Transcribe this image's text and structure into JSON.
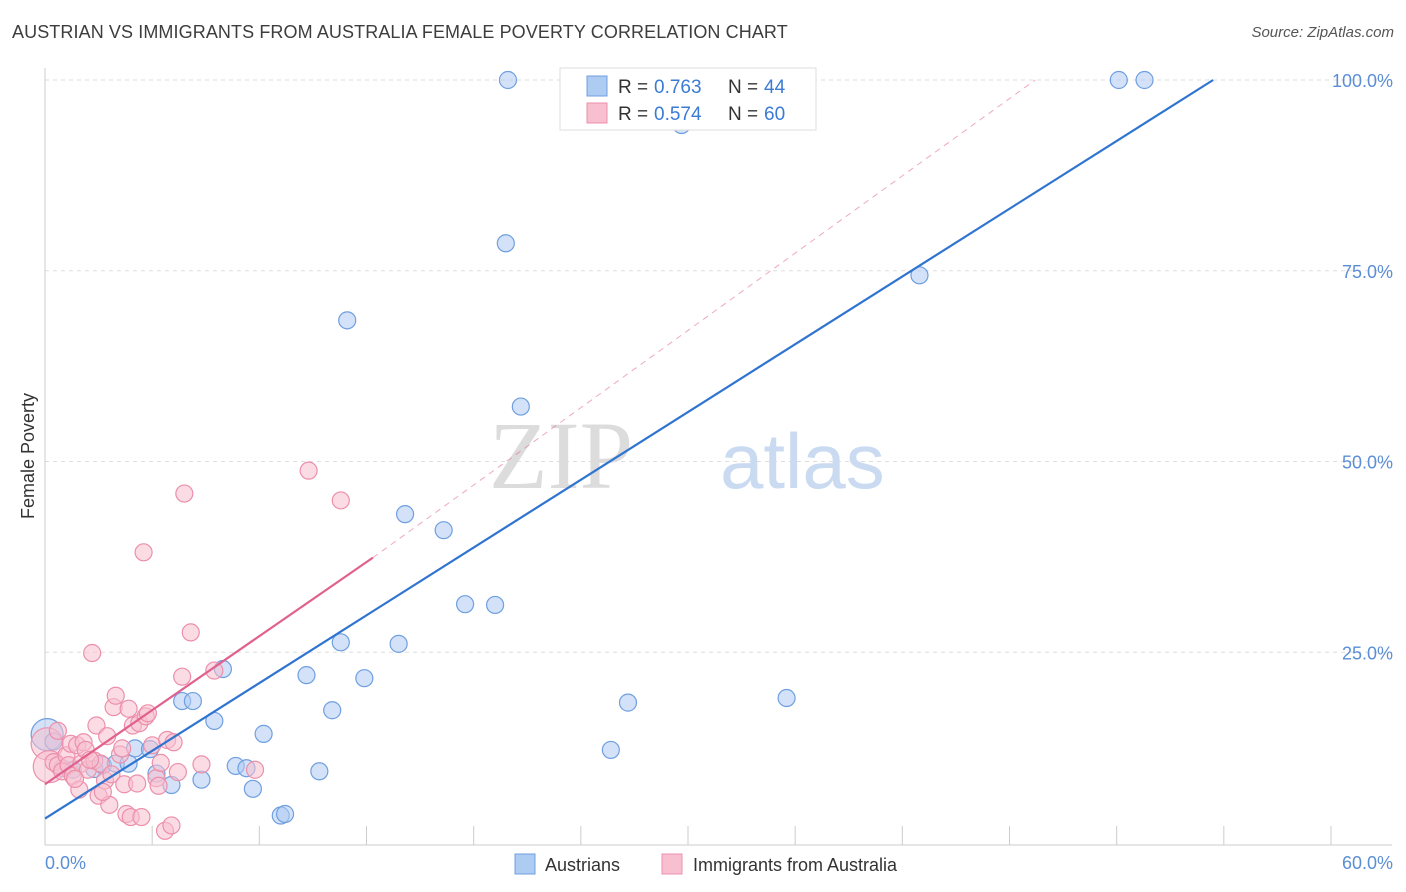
{
  "title": "AUSTRIAN VS IMMIGRANTS FROM AUSTRALIA FEMALE POVERTY CORRELATION CHART",
  "source": "Source: ZipAtlas.com",
  "watermark": {
    "zip": "ZIP",
    "atlas": "atlas"
  },
  "colors": {
    "austrians_fill": "#aecbf2",
    "austrians_stroke": "#6f9fe0",
    "austrians_line": "#2f74d0",
    "australia_fill": "#f7bfd0",
    "australia_stroke": "#ec8fab",
    "australia_line": "#e0608e",
    "tick_label": "#5b8ed6",
    "grid": "#dddddd"
  },
  "legend_top": {
    "rows": [
      {
        "r_label": "R = ",
        "r_value": "0.763",
        "n_label": "N = ",
        "n_value": "44"
      },
      {
        "r_label": "R = ",
        "r_value": "0.574",
        "n_label": "N = ",
        "n_value": "60"
      }
    ]
  },
  "legend_bottom": [
    "Austrians",
    "Immigrants from Australia"
  ],
  "chart_data": {
    "type": "scatter",
    "ylabel": "Female Poverty",
    "xlim": [
      0,
      60
    ],
    "ylim": [
      0,
      100
    ],
    "x_tick_labels": [
      {
        "value": 0,
        "label": "0.0%"
      },
      {
        "value": 60,
        "label": "60.0%"
      }
    ],
    "y_tick_labels": [
      {
        "value": 25,
        "label": "25.0%"
      },
      {
        "value": 50,
        "label": "50.0%"
      },
      {
        "value": 75,
        "label": "75.0%"
      },
      {
        "value": 100,
        "label": "100.0%"
      }
    ],
    "grid": true,
    "legend_placement": "top-center",
    "series": [
      {
        "name": "Austrians",
        "trend": {
          "x": [
            0,
            54.5
          ],
          "y": [
            3.2,
            100
          ]
        },
        "points": [
          {
            "x": 0.1,
            "y": 14.2,
            "big": true
          },
          {
            "x": 0.8,
            "y": 9.8
          },
          {
            "x": 1.3,
            "y": 9.6
          },
          {
            "x": 2.3,
            "y": 9.7
          },
          {
            "x": 2.7,
            "y": 10.2
          },
          {
            "x": 3.3,
            "y": 10.4
          },
          {
            "x": 3.9,
            "y": 10.4
          },
          {
            "x": 4.2,
            "y": 12.4
          },
          {
            "x": 4.9,
            "y": 12.3
          },
          {
            "x": 5.2,
            "y": 9.1
          },
          {
            "x": 5.9,
            "y": 7.6
          },
          {
            "x": 6.4,
            "y": 18.6
          },
          {
            "x": 6.9,
            "y": 18.6
          },
          {
            "x": 7.3,
            "y": 8.3
          },
          {
            "x": 7.9,
            "y": 16.0
          },
          {
            "x": 8.3,
            "y": 22.8
          },
          {
            "x": 8.9,
            "y": 10.1
          },
          {
            "x": 9.4,
            "y": 9.8
          },
          {
            "x": 9.7,
            "y": 7.1
          },
          {
            "x": 10.2,
            "y": 14.3
          },
          {
            "x": 11.0,
            "y": 3.6
          },
          {
            "x": 11.2,
            "y": 3.8
          },
          {
            "x": 12.2,
            "y": 22.0
          },
          {
            "x": 12.8,
            "y": 9.4
          },
          {
            "x": 13.4,
            "y": 17.4
          },
          {
            "x": 13.8,
            "y": 26.3
          },
          {
            "x": 14.1,
            "y": 68.5
          },
          {
            "x": 14.9,
            "y": 21.6
          },
          {
            "x": 16.5,
            "y": 26.1
          },
          {
            "x": 16.8,
            "y": 43.1
          },
          {
            "x": 18.6,
            "y": 41.0
          },
          {
            "x": 19.6,
            "y": 31.3
          },
          {
            "x": 21.0,
            "y": 31.2
          },
          {
            "x": 21.5,
            "y": 78.6
          },
          {
            "x": 21.6,
            "y": 100
          },
          {
            "x": 22.2,
            "y": 57.2
          },
          {
            "x": 26.4,
            "y": 12.2
          },
          {
            "x": 27.2,
            "y": 18.4
          },
          {
            "x": 29.7,
            "y": 94.1
          },
          {
            "x": 34.6,
            "y": 19.0
          },
          {
            "x": 40.8,
            "y": 74.4
          },
          {
            "x": 50.1,
            "y": 100
          },
          {
            "x": 51.3,
            "y": 100
          },
          {
            "x": 0.4,
            "y": 13.3
          }
        ]
      },
      {
        "name": "Immigrants from Australia",
        "trend": {
          "x": [
            0,
            15.3
          ],
          "y": [
            7.7,
            37.4
          ]
        },
        "trend_extension": {
          "x": [
            15.3,
            46.2
          ],
          "y": [
            37.4,
            100
          ]
        },
        "points": [
          {
            "x": 0.1,
            "y": 13.0,
            "big": true
          },
          {
            "x": 0.2,
            "y": 10.0,
            "big": true
          },
          {
            "x": 0.4,
            "y": 10.6
          },
          {
            "x": 0.6,
            "y": 10.2
          },
          {
            "x": 0.8,
            "y": 9.4
          },
          {
            "x": 1.0,
            "y": 11.5
          },
          {
            "x": 1.1,
            "y": 10.2
          },
          {
            "x": 1.2,
            "y": 13.0
          },
          {
            "x": 1.3,
            "y": 8.8
          },
          {
            "x": 1.5,
            "y": 12.8
          },
          {
            "x": 1.6,
            "y": 7.0
          },
          {
            "x": 1.7,
            "y": 10.4
          },
          {
            "x": 1.8,
            "y": 13.2
          },
          {
            "x": 1.9,
            "y": 12.2
          },
          {
            "x": 2.0,
            "y": 9.6
          },
          {
            "x": 2.2,
            "y": 24.9
          },
          {
            "x": 2.3,
            "y": 10.8
          },
          {
            "x": 2.4,
            "y": 15.4
          },
          {
            "x": 2.5,
            "y": 6.2
          },
          {
            "x": 2.6,
            "y": 10.4
          },
          {
            "x": 2.8,
            "y": 8.2
          },
          {
            "x": 2.9,
            "y": 14.0
          },
          {
            "x": 3.0,
            "y": 5.0
          },
          {
            "x": 3.1,
            "y": 9.0
          },
          {
            "x": 3.2,
            "y": 17.8
          },
          {
            "x": 3.3,
            "y": 19.3
          },
          {
            "x": 3.5,
            "y": 11.6
          },
          {
            "x": 3.7,
            "y": 7.7
          },
          {
            "x": 3.8,
            "y": 3.8
          },
          {
            "x": 3.9,
            "y": 17.6
          },
          {
            "x": 4.0,
            "y": 3.4
          },
          {
            "x": 4.1,
            "y": 15.4
          },
          {
            "x": 4.3,
            "y": 7.8
          },
          {
            "x": 4.4,
            "y": 15.7
          },
          {
            "x": 4.5,
            "y": 3.4
          },
          {
            "x": 4.6,
            "y": 38.1
          },
          {
            "x": 4.7,
            "y": 16.6
          },
          {
            "x": 4.8,
            "y": 17.0
          },
          {
            "x": 5.0,
            "y": 12.8
          },
          {
            "x": 5.2,
            "y": 8.5
          },
          {
            "x": 5.3,
            "y": 7.5
          },
          {
            "x": 5.4,
            "y": 10.5
          },
          {
            "x": 5.6,
            "y": 1.6
          },
          {
            "x": 5.7,
            "y": 13.5
          },
          {
            "x": 5.9,
            "y": 2.3
          },
          {
            "x": 6.0,
            "y": 13.2
          },
          {
            "x": 6.2,
            "y": 9.3
          },
          {
            "x": 6.4,
            "y": 21.8
          },
          {
            "x": 6.5,
            "y": 45.8
          },
          {
            "x": 6.8,
            "y": 27.6
          },
          {
            "x": 7.3,
            "y": 10.3
          },
          {
            "x": 7.9,
            "y": 22.6
          },
          {
            "x": 9.8,
            "y": 9.6
          },
          {
            "x": 12.3,
            "y": 48.8
          },
          {
            "x": 13.8,
            "y": 44.9
          },
          {
            "x": 0.6,
            "y": 14.7
          },
          {
            "x": 1.4,
            "y": 8.4
          },
          {
            "x": 2.1,
            "y": 10.9
          },
          {
            "x": 2.7,
            "y": 6.7
          },
          {
            "x": 3.6,
            "y": 12.4
          }
        ]
      }
    ]
  }
}
